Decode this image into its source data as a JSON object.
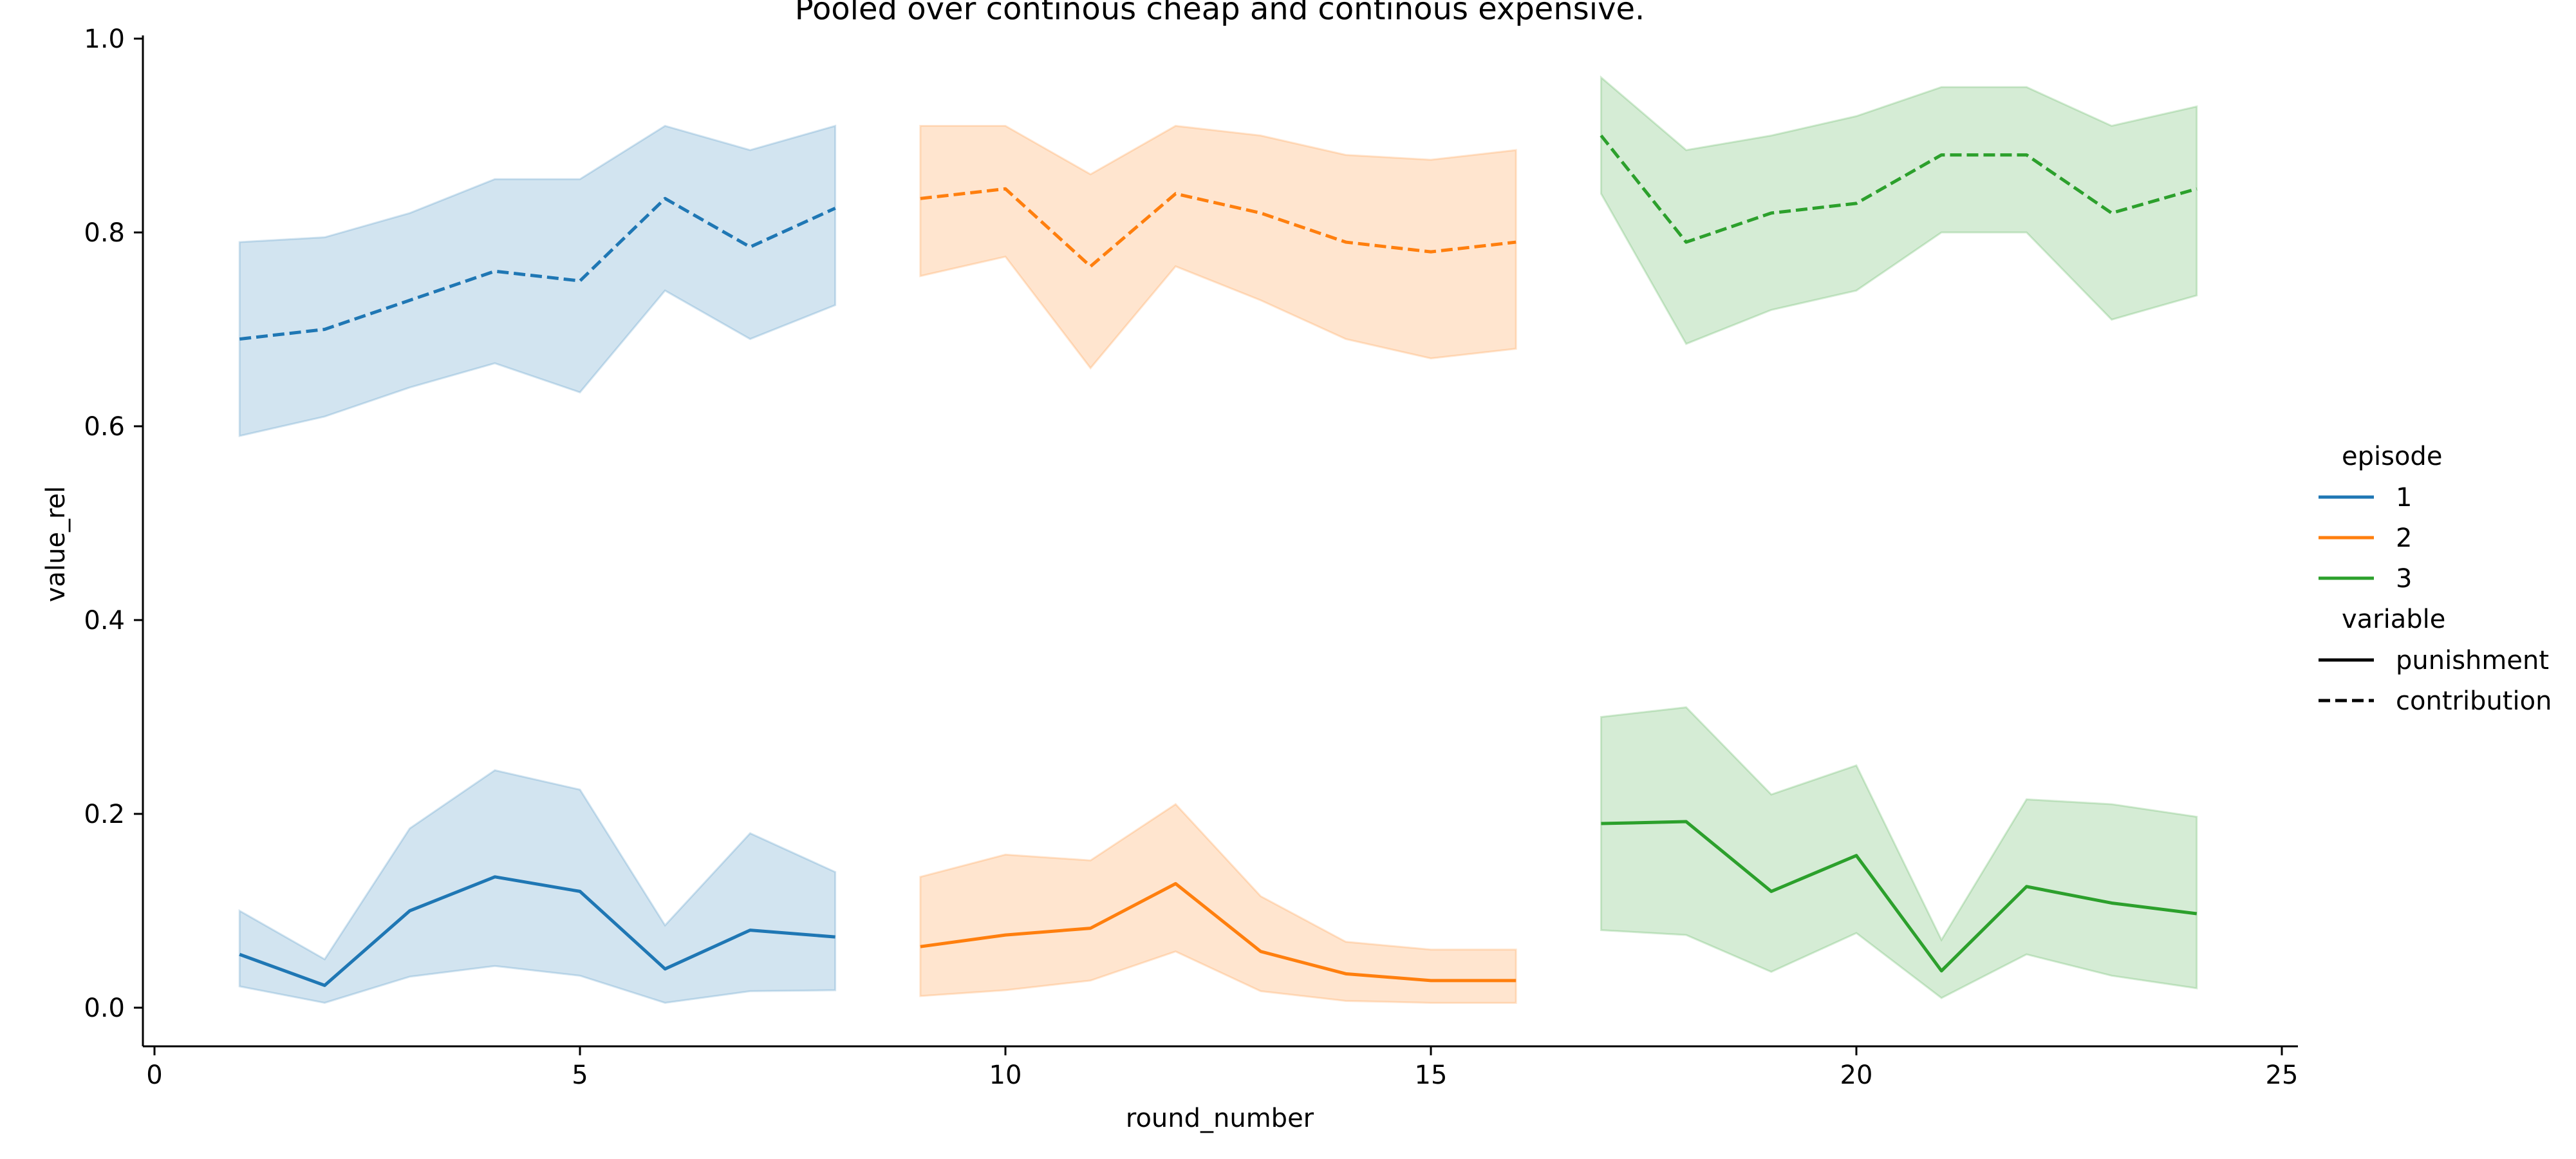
{
  "chart_data": {
    "type": "line",
    "title": "Pooled over continous cheap and continous expensive.",
    "xlabel": "round_number",
    "ylabel": "value_rel",
    "xlim": [
      -0.25,
      25.25
    ],
    "ylim": [
      -0.04,
      1.0
    ],
    "xticks": [
      "0",
      "5",
      "10",
      "15",
      "20",
      "25"
    ],
    "yticks": [
      "0.0",
      "0.2",
      "0.4",
      "0.6",
      "0.8",
      "1.0"
    ],
    "grid": false,
    "legend_position": "right",
    "legend": {
      "episode_title": "episode",
      "episodes": [
        {
          "label": "1",
          "color": "#1f77b4"
        },
        {
          "label": "2",
          "color": "#ff7f0e"
        },
        {
          "label": "3",
          "color": "#2ca02c"
        }
      ],
      "variable_title": "variable",
      "variables": [
        {
          "label": "punishment",
          "style": "solid"
        },
        {
          "label": "contribution",
          "style": "dashed"
        }
      ]
    },
    "series": [
      {
        "episode": "1",
        "variable": "contribution",
        "color": "#1f77b4",
        "style": "dashed",
        "x": [
          1,
          2,
          3,
          4,
          5,
          6,
          7,
          8
        ],
        "y": [
          0.69,
          0.7,
          0.73,
          0.76,
          0.75,
          0.835,
          0.785,
          0.825
        ],
        "lower": [
          0.59,
          0.61,
          0.64,
          0.665,
          0.635,
          0.74,
          0.69,
          0.725
        ],
        "upper": [
          0.79,
          0.795,
          0.82,
          0.855,
          0.855,
          0.91,
          0.885,
          0.91
        ]
      },
      {
        "episode": "2",
        "variable": "contribution",
        "color": "#ff7f0e",
        "style": "dashed",
        "x": [
          9,
          10,
          11,
          12,
          13,
          14,
          15,
          16
        ],
        "y": [
          0.835,
          0.845,
          0.765,
          0.84,
          0.82,
          0.79,
          0.78,
          0.79
        ],
        "lower": [
          0.755,
          0.775,
          0.66,
          0.765,
          0.73,
          0.69,
          0.67,
          0.68
        ],
        "upper": [
          0.91,
          0.91,
          0.86,
          0.91,
          0.9,
          0.88,
          0.875,
          0.885
        ]
      },
      {
        "episode": "3",
        "variable": "contribution",
        "color": "#2ca02c",
        "style": "dashed",
        "x": [
          17,
          18,
          19,
          20,
          21,
          22,
          23,
          24
        ],
        "y": [
          0.9,
          0.79,
          0.82,
          0.83,
          0.88,
          0.88,
          0.82,
          0.845
        ],
        "lower": [
          0.84,
          0.685,
          0.72,
          0.74,
          0.8,
          0.8,
          0.71,
          0.735
        ],
        "upper": [
          0.96,
          0.885,
          0.9,
          0.92,
          0.95,
          0.95,
          0.91,
          0.93
        ]
      },
      {
        "episode": "1",
        "variable": "punishment",
        "color": "#1f77b4",
        "style": "solid",
        "x": [
          1,
          2,
          3,
          4,
          5,
          6,
          7,
          8
        ],
        "y": [
          0.055,
          0.023,
          0.1,
          0.135,
          0.12,
          0.04,
          0.08,
          0.073
        ],
        "lower": [
          0.022,
          0.005,
          0.032,
          0.043,
          0.033,
          0.005,
          0.017,
          0.018
        ],
        "upper": [
          0.1,
          0.05,
          0.185,
          0.245,
          0.225,
          0.085,
          0.18,
          0.14
        ]
      },
      {
        "episode": "2",
        "variable": "punishment",
        "color": "#ff7f0e",
        "style": "solid",
        "x": [
          9,
          10,
          11,
          12,
          13,
          14,
          15,
          16
        ],
        "y": [
          0.063,
          0.075,
          0.082,
          0.128,
          0.058,
          0.035,
          0.028,
          0.028
        ],
        "lower": [
          0.012,
          0.018,
          0.028,
          0.058,
          0.017,
          0.007,
          0.005,
          0.005
        ],
        "upper": [
          0.135,
          0.158,
          0.152,
          0.21,
          0.115,
          0.068,
          0.06,
          0.06
        ]
      },
      {
        "episode": "3",
        "variable": "punishment",
        "color": "#2ca02c",
        "style": "solid",
        "x": [
          17,
          18,
          19,
          20,
          21,
          22,
          23,
          24
        ],
        "y": [
          0.19,
          0.192,
          0.12,
          0.157,
          0.038,
          0.125,
          0.108,
          0.097
        ],
        "lower": [
          0.08,
          0.075,
          0.037,
          0.077,
          0.01,
          0.055,
          0.033,
          0.02
        ],
        "upper": [
          0.3,
          0.31,
          0.22,
          0.25,
          0.07,
          0.215,
          0.21,
          0.197
        ]
      }
    ]
  }
}
